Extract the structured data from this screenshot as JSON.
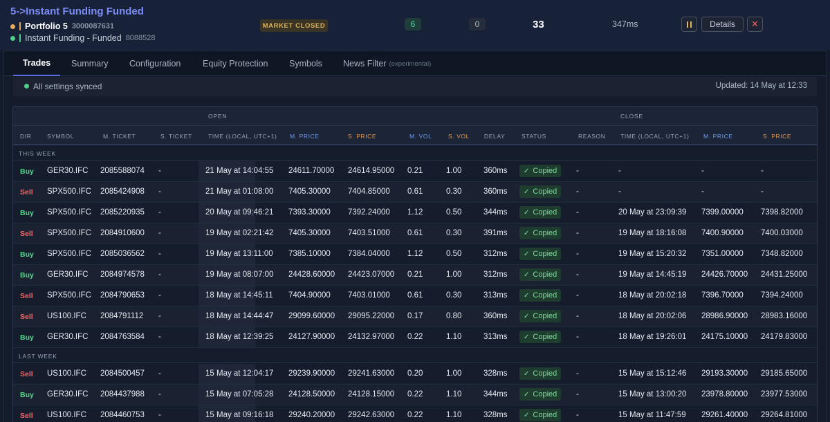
{
  "header": {
    "title": "5->Instant Funding Funded",
    "account1": {
      "name": "Portfolio 5",
      "number": "3000087631",
      "dot_color": "#e8a857",
      "bar_color": "#e8a857"
    },
    "account2": {
      "name": "Instant Funding - Funded",
      "number": "8088528",
      "dot_color": "#4cd08a",
      "bar_color": "#4cd08a"
    },
    "market_status": "MARKET CLOSED",
    "count_green": "6",
    "count_grey": "0",
    "total": "33",
    "latency": "347ms",
    "details_label": "Details",
    "close_glyph": "✕"
  },
  "tabs": [
    {
      "label": "Trades",
      "sub": ""
    },
    {
      "label": "Summary",
      "sub": ""
    },
    {
      "label": "Configuration",
      "sub": ""
    },
    {
      "label": "Equity Protection",
      "sub": ""
    },
    {
      "label": "Symbols",
      "sub": ""
    },
    {
      "label": "News Filter",
      "sub": "(experimental)"
    }
  ],
  "sync": {
    "text": "All settings synced",
    "updated": "Updated: 14 May at 12:33"
  },
  "table": {
    "group_open": "OPEN",
    "group_close": "CLOSE",
    "columns": [
      "DIR",
      "SYMBOL",
      "M. TICKET",
      "S. TICKET",
      "TIME (LOCAL, UTC+1)",
      "M. PRICE",
      "S. PRICE",
      "M. VOL",
      "S. VOL",
      "DELAY",
      "STATUS",
      "REASON",
      "TIME (LOCAL, UTC+1)",
      "M. PRICE",
      "S. PRICE"
    ],
    "sections": [
      {
        "label": "THIS WEEK",
        "rows": [
          [
            "Buy",
            "GER30.IFC",
            "2085588074",
            "-",
            "21 May at 14:04:55",
            "24611.70000",
            "24614.95000",
            "0.21",
            "1.00",
            "360ms",
            "Copied",
            "-",
            "-",
            "-",
            "-"
          ],
          [
            "Sell",
            "SPX500.IFC",
            "2085424908",
            "-",
            "21 May at 01:08:00",
            "7405.30000",
            "7404.85000",
            "0.61",
            "0.30",
            "360ms",
            "Copied",
            "-",
            "-",
            "-",
            "-"
          ],
          [
            "Buy",
            "SPX500.IFC",
            "2085220935",
            "-",
            "20 May at 09:46:21",
            "7393.30000",
            "7392.24000",
            "1.12",
            "0.50",
            "344ms",
            "Copied",
            "-",
            "20 May at 23:09:39",
            "7399.00000",
            "7398.82000"
          ],
          [
            "Sell",
            "SPX500.IFC",
            "2084910600",
            "-",
            "19 May at 02:21:42",
            "7405.30000",
            "7403.51000",
            "0.61",
            "0.30",
            "391ms",
            "Copied",
            "-",
            "19 May at 18:16:08",
            "7400.90000",
            "7400.03000"
          ],
          [
            "Buy",
            "SPX500.IFC",
            "2085036562",
            "-",
            "19 May at 13:11:00",
            "7385.10000",
            "7384.04000",
            "1.12",
            "0.50",
            "312ms",
            "Copied",
            "-",
            "19 May at 15:20:32",
            "7351.00000",
            "7348.82000"
          ],
          [
            "Buy",
            "GER30.IFC",
            "2084974578",
            "-",
            "19 May at 08:07:00",
            "24428.60000",
            "24423.07000",
            "0.21",
            "1.00",
            "312ms",
            "Copied",
            "-",
            "19 May at 14:45:19",
            "24426.70000",
            "24431.25000"
          ],
          [
            "Sell",
            "SPX500.IFC",
            "2084790653",
            "-",
            "18 May at 14:45:11",
            "7404.90000",
            "7403.01000",
            "0.61",
            "0.30",
            "313ms",
            "Copied",
            "-",
            "18 May at 20:02:18",
            "7396.70000",
            "7394.24000"
          ],
          [
            "Sell",
            "US100.IFC",
            "2084791112",
            "-",
            "18 May at 14:44:47",
            "29099.60000",
            "29095.22000",
            "0.17",
            "0.80",
            "360ms",
            "Copied",
            "-",
            "18 May at 20:02:06",
            "28986.90000",
            "28983.16000"
          ],
          [
            "Buy",
            "GER30.IFC",
            "2084763584",
            "-",
            "18 May at 12:39:25",
            "24127.90000",
            "24132.97000",
            "0.22",
            "1.10",
            "313ms",
            "Copied",
            "-",
            "18 May at 19:26:01",
            "24175.10000",
            "24179.83000"
          ]
        ]
      },
      {
        "label": "LAST WEEK",
        "rows": [
          [
            "Sell",
            "US100.IFC",
            "2084500457",
            "-",
            "15 May at 12:04:17",
            "29239.90000",
            "29241.63000",
            "0.20",
            "1.00",
            "328ms",
            "Copied",
            "-",
            "15 May at 15:12:46",
            "29193.30000",
            "29185.65000"
          ],
          [
            "Buy",
            "GER30.IFC",
            "2084437988",
            "-",
            "15 May at 07:05:28",
            "24128.50000",
            "24128.15000",
            "0.22",
            "1.10",
            "344ms",
            "Copied",
            "-",
            "15 May at 13:00:20",
            "23978.80000",
            "23977.53000"
          ],
          [
            "Sell",
            "US100.IFC",
            "2084460753",
            "-",
            "15 May at 09:16:18",
            "29240.20000",
            "29242.63000",
            "0.22",
            "1.10",
            "328ms",
            "Copied",
            "-",
            "15 May at 11:47:59",
            "29261.40000",
            "29264.81000"
          ]
        ]
      }
    ]
  },
  "icons": {
    "pause": "pause-icon",
    "check": "check-icon",
    "close": "close-icon"
  }
}
